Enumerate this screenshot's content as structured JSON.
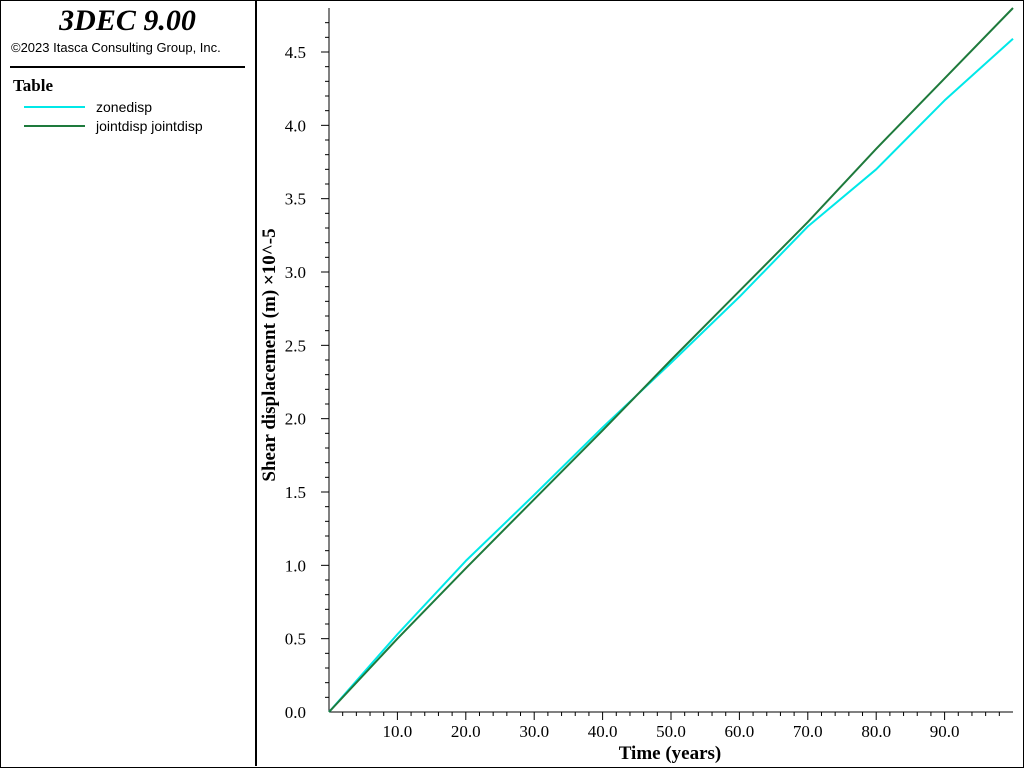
{
  "app": {
    "title": "3DEC 9.00",
    "copyright": "©2023 Itasca Consulting Group, Inc."
  },
  "legend": {
    "heading": "Table",
    "items": [
      {
        "label": "zonedisp",
        "color": "#00e8e8"
      },
      {
        "label": "jointdisp jointdisp",
        "color": "#1e7a3c"
      }
    ]
  },
  "chart_data": {
    "type": "line",
    "title": "",
    "xlabel": "Time (years)",
    "ylabel": "Shear displacement (m) ×10^-5",
    "xlim": [
      0,
      100
    ],
    "ylim": [
      0,
      4.8
    ],
    "xticks": [
      10,
      20,
      30,
      40,
      50,
      60,
      70,
      80,
      90
    ],
    "xtick_labels": [
      "10.0",
      "20.0",
      "30.0",
      "40.0",
      "50.0",
      "60.0",
      "70.0",
      "80.0",
      "90.0"
    ],
    "yticks": [
      0,
      0.5,
      1.0,
      1.5,
      2.0,
      2.5,
      3.0,
      3.5,
      4.0,
      4.5
    ],
    "ytick_labels": [
      "0.0",
      "0.5",
      "1.0",
      "1.5",
      "2.0",
      "2.5",
      "3.0",
      "3.5",
      "4.0",
      "4.5"
    ],
    "grid": false,
    "legend": "left-panel",
    "series": [
      {
        "name": "zonedisp",
        "color": "#00e8e8",
        "x": [
          0,
          10,
          20,
          30,
          40,
          45,
          50,
          60,
          70,
          80,
          90,
          100
        ],
        "y": [
          0,
          0.53,
          1.03,
          1.48,
          1.94,
          2.16,
          2.38,
          2.83,
          3.31,
          3.7,
          4.17,
          4.59
        ]
      },
      {
        "name": "jointdisp jointdisp",
        "color": "#1e7a3c",
        "x": [
          0,
          10,
          20,
          30,
          40,
          50,
          60,
          70,
          80,
          90,
          100
        ],
        "y": [
          0,
          0.5,
          0.98,
          1.45,
          1.92,
          2.4,
          2.87,
          3.34,
          3.84,
          4.32,
          4.8
        ]
      }
    ]
  }
}
